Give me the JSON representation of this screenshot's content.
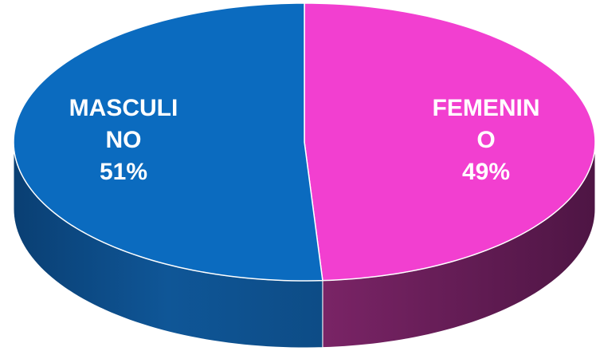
{
  "chart_data": {
    "type": "pie",
    "categories": [
      "FEMENINO",
      "MASCULINO"
    ],
    "values": [
      49,
      51
    ],
    "value_labels": [
      "49%",
      "51%"
    ],
    "colors": [
      "#f23fd0",
      "#0b6bbf"
    ]
  }
}
